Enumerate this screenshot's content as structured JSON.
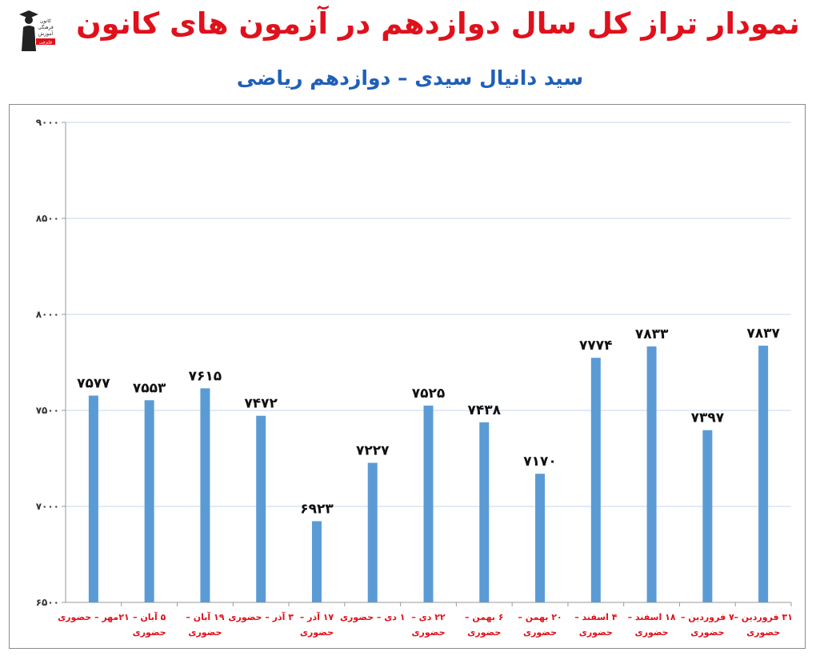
{
  "header": {
    "title": "نمودار تراز کل سال دوازدهم در آزمون های کانون",
    "subtitle": "سید دانیال سیدی – دوازدهم ریاضی"
  },
  "logo": {
    "icon": "graduate-figure-icon",
    "lines": [
      "کانون",
      "فرهنگی",
      "آموزش",
      "قلم‌چی"
    ]
  },
  "colors": {
    "title": "#e0111c",
    "subtitle": "#1f5fb8",
    "bar": "#5b9bd5",
    "category_label": "#e0111c",
    "value_label": "#111111",
    "grid": "#c6d7ee"
  },
  "chart_data": {
    "type": "bar",
    "ylim": [
      6500,
      9000
    ],
    "yticks": [
      6500,
      7000,
      7500,
      8000,
      8500,
      9000
    ],
    "ytick_labels": [
      "۶۵۰۰",
      "۷۰۰۰",
      "۷۵۰۰",
      "۸۰۰۰",
      "۸۵۰۰",
      "۹۰۰۰"
    ],
    "grid": true,
    "legend": false,
    "categories": [
      [
        "۲۱مهر – حضوری"
      ],
      [
        "۵ آبان –",
        "حضوری"
      ],
      [
        "۱۹ آبان –",
        "حضوری"
      ],
      [
        "۳ آذر – حضوری"
      ],
      [
        "۱۷ آذر –",
        "حضوری"
      ],
      [
        "۱ دی – حضوری"
      ],
      [
        "۲۲ دی –",
        "حضوری"
      ],
      [
        "۶ بهمن –",
        "حضوری"
      ],
      [
        "۲۰ بهمن –",
        "حضوری"
      ],
      [
        "۴ اسفند –",
        "حضوری"
      ],
      [
        "۱۸ اسفند –",
        "حضوری"
      ],
      [
        "۷ فروردین –",
        "حضوری"
      ],
      [
        "۳۱ فروردین –",
        "حضوری"
      ]
    ],
    "values": [
      7577,
      7553,
      7615,
      7472,
      6923,
      7227,
      7525,
      7438,
      7170,
      7774,
      7833,
      7397,
      7837
    ],
    "value_labels": [
      "۷۵۷۷",
      "۷۵۵۳",
      "۷۶۱۵",
      "۷۴۷۲",
      "۶۹۲۳",
      "۷۲۲۷",
      "۷۵۲۵",
      "۷۴۳۸",
      "۷۱۷۰",
      "۷۷۷۴",
      "۷۸۳۳",
      "۷۳۹۷",
      "۷۸۳۷"
    ]
  }
}
